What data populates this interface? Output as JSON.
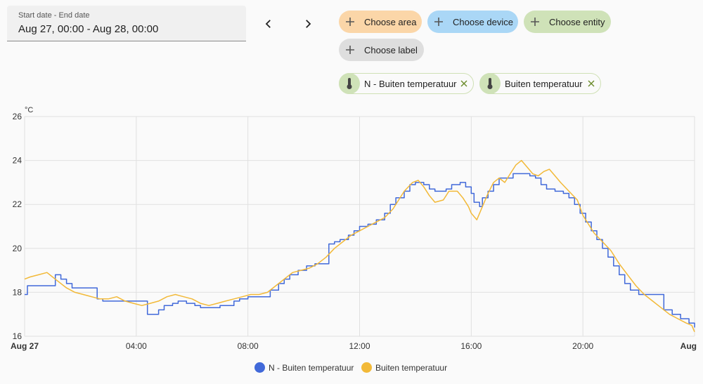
{
  "date_range": {
    "label": "Start date - End date",
    "value": "Aug 27, 00:00 - Aug 28, 00:00"
  },
  "nav": {
    "prev_icon": "chevron-left-icon",
    "next_icon": "chevron-right-icon"
  },
  "target_picker": {
    "area_label": "Choose area",
    "device_label": "Choose device",
    "entity_label": "Choose entity",
    "label_label": "Choose label",
    "colors": {
      "area": "#fbd6a8",
      "device": "#aad7f6",
      "entity": "#cfe2b8",
      "label": "#dedede"
    }
  },
  "selected_entities": [
    {
      "label": "N - Buiten temperatuur",
      "icon": "thermometer-icon"
    },
    {
      "label": "Buiten temperatuur",
      "icon": "thermometer-icon"
    }
  ],
  "chart_data": {
    "type": "line",
    "title": "",
    "ylabel": "°C",
    "xlabel": "",
    "ylim": [
      16,
      26
    ],
    "xlim": [
      0,
      24
    ],
    "y_ticks": [
      "16",
      "18",
      "20",
      "22",
      "24",
      "26"
    ],
    "x_ticks": [
      {
        "at": 0,
        "label": "Aug 27"
      },
      {
        "at": 4,
        "label": "04:00"
      },
      {
        "at": 8,
        "label": "08:00"
      },
      {
        "at": 12,
        "label": "12:00"
      },
      {
        "at": 16,
        "label": "16:00"
      },
      {
        "at": 20,
        "label": "20:00"
      },
      {
        "at": 24,
        "label": "Aug"
      }
    ],
    "grid": true,
    "legend_position": "bottom",
    "series": [
      {
        "name": "N - Buiten temperatuur",
        "color": "#4169d9",
        "step": true,
        "points": [
          [
            0,
            17.9
          ],
          [
            0.1,
            18.3
          ],
          [
            1.1,
            18.3
          ],
          [
            1.1,
            18.8
          ],
          [
            1.3,
            18.6
          ],
          [
            1.5,
            18.4
          ],
          [
            1.7,
            18.2
          ],
          [
            2.6,
            18.2
          ],
          [
            2.6,
            17.7
          ],
          [
            2.8,
            17.6
          ],
          [
            4.4,
            17.6
          ],
          [
            4.4,
            17.0
          ],
          [
            4.8,
            17.0
          ],
          [
            4.8,
            17.2
          ],
          [
            5.0,
            17.4
          ],
          [
            5.3,
            17.5
          ],
          [
            5.5,
            17.6
          ],
          [
            5.8,
            17.5
          ],
          [
            6.1,
            17.4
          ],
          [
            6.3,
            17.3
          ],
          [
            7.0,
            17.3
          ],
          [
            7.0,
            17.4
          ],
          [
            7.5,
            17.6
          ],
          [
            7.7,
            17.7
          ],
          [
            8.0,
            17.8
          ],
          [
            8.8,
            17.8
          ],
          [
            8.8,
            18.1
          ],
          [
            9.1,
            18.4
          ],
          [
            9.3,
            18.6
          ],
          [
            9.5,
            18.8
          ],
          [
            9.8,
            19.0
          ],
          [
            10.1,
            19.2
          ],
          [
            10.4,
            19.3
          ],
          [
            10.6,
            19.3
          ],
          [
            10.9,
            19.3
          ],
          [
            10.9,
            20.2
          ],
          [
            11.1,
            20.3
          ],
          [
            11.3,
            20.4
          ],
          [
            11.6,
            20.6
          ],
          [
            11.8,
            20.8
          ],
          [
            12.0,
            21.0
          ],
          [
            12.3,
            21.1
          ],
          [
            12.6,
            21.3
          ],
          [
            12.9,
            21.6
          ],
          [
            13.1,
            22.0
          ],
          [
            13.3,
            22.3
          ],
          [
            13.6,
            22.6
          ],
          [
            13.8,
            22.9
          ],
          [
            14.0,
            23.0
          ],
          [
            14.3,
            23.0
          ],
          [
            14.3,
            22.9
          ],
          [
            14.5,
            22.7
          ],
          [
            14.7,
            22.6
          ],
          [
            14.9,
            22.6
          ],
          [
            15.1,
            22.7
          ],
          [
            15.3,
            22.9
          ],
          [
            15.6,
            23.0
          ],
          [
            15.8,
            22.8
          ],
          [
            16.0,
            22.5
          ],
          [
            16.1,
            22.1
          ],
          [
            16.3,
            21.9
          ],
          [
            16.4,
            22.3
          ],
          [
            16.6,
            22.6
          ],
          [
            16.8,
            22.9
          ],
          [
            17.0,
            23.2
          ],
          [
            17.5,
            23.2
          ],
          [
            17.5,
            23.4
          ],
          [
            17.9,
            23.4
          ],
          [
            18.1,
            23.3
          ],
          [
            18.3,
            23.2
          ],
          [
            18.5,
            22.9
          ],
          [
            18.7,
            22.7
          ],
          [
            19.0,
            22.6
          ],
          [
            19.3,
            22.5
          ],
          [
            19.5,
            22.3
          ],
          [
            19.7,
            22.0
          ],
          [
            19.9,
            21.6
          ],
          [
            20.1,
            21.2
          ],
          [
            20.3,
            20.8
          ],
          [
            20.5,
            20.4
          ],
          [
            20.7,
            20.0
          ],
          [
            20.9,
            19.6
          ],
          [
            21.1,
            19.2
          ],
          [
            21.3,
            18.8
          ],
          [
            21.5,
            18.4
          ],
          [
            21.7,
            18.1
          ],
          [
            22.0,
            17.9
          ],
          [
            22.9,
            17.9
          ],
          [
            22.9,
            17.2
          ],
          [
            23.2,
            17.0
          ],
          [
            23.5,
            16.8
          ],
          [
            23.8,
            16.6
          ],
          [
            24.0,
            16.4
          ]
        ]
      },
      {
        "name": "Buiten temperatuur",
        "color": "#f2b938",
        "step": false,
        "points": [
          [
            0,
            18.6
          ],
          [
            0.2,
            18.7
          ],
          [
            0.5,
            18.8
          ],
          [
            0.8,
            18.9
          ],
          [
            1.0,
            18.7
          ],
          [
            1.2,
            18.5
          ],
          [
            1.5,
            18.2
          ],
          [
            1.8,
            18.0
          ],
          [
            2.1,
            17.9
          ],
          [
            2.4,
            17.8
          ],
          [
            2.7,
            17.7
          ],
          [
            3.0,
            17.7
          ],
          [
            3.3,
            17.8
          ],
          [
            3.6,
            17.6
          ],
          [
            3.9,
            17.5
          ],
          [
            4.2,
            17.4
          ],
          [
            4.5,
            17.5
          ],
          [
            4.8,
            17.6
          ],
          [
            5.1,
            17.8
          ],
          [
            5.4,
            17.9
          ],
          [
            5.7,
            17.8
          ],
          [
            6.0,
            17.7
          ],
          [
            6.3,
            17.5
          ],
          [
            6.6,
            17.4
          ],
          [
            6.9,
            17.5
          ],
          [
            7.2,
            17.6
          ],
          [
            7.5,
            17.7
          ],
          [
            7.8,
            17.8
          ],
          [
            8.1,
            17.9
          ],
          [
            8.4,
            17.9
          ],
          [
            8.7,
            18.0
          ],
          [
            9.0,
            18.3
          ],
          [
            9.3,
            18.6
          ],
          [
            9.6,
            18.9
          ],
          [
            9.9,
            19.0
          ],
          [
            10.2,
            19.1
          ],
          [
            10.5,
            19.3
          ],
          [
            10.8,
            19.6
          ],
          [
            11.1,
            20.0
          ],
          [
            11.4,
            20.3
          ],
          [
            11.7,
            20.6
          ],
          [
            12.0,
            20.8
          ],
          [
            12.3,
            21.0
          ],
          [
            12.6,
            21.2
          ],
          [
            12.9,
            21.4
          ],
          [
            13.2,
            21.8
          ],
          [
            13.4,
            22.2
          ],
          [
            13.6,
            22.6
          ],
          [
            13.9,
            23.0
          ],
          [
            14.1,
            23.1
          ],
          [
            14.3,
            22.8
          ],
          [
            14.5,
            22.4
          ],
          [
            14.7,
            22.1
          ],
          [
            15.0,
            22.2
          ],
          [
            15.2,
            22.6
          ],
          [
            15.5,
            22.6
          ],
          [
            15.7,
            22.3
          ],
          [
            15.9,
            21.9
          ],
          [
            16.0,
            21.6
          ],
          [
            16.2,
            21.3
          ],
          [
            16.4,
            21.9
          ],
          [
            16.6,
            22.5
          ],
          [
            16.8,
            23.0
          ],
          [
            17.0,
            23.2
          ],
          [
            17.2,
            23.0
          ],
          [
            17.4,
            23.4
          ],
          [
            17.6,
            23.8
          ],
          [
            17.8,
            24.0
          ],
          [
            18.0,
            23.7
          ],
          [
            18.2,
            23.4
          ],
          [
            18.4,
            23.3
          ],
          [
            18.6,
            23.5
          ],
          [
            18.8,
            23.6
          ],
          [
            19.0,
            23.3
          ],
          [
            19.2,
            23.0
          ],
          [
            19.5,
            22.6
          ],
          [
            19.8,
            22.2
          ],
          [
            20.0,
            21.5
          ],
          [
            20.2,
            21.1
          ],
          [
            20.4,
            20.7
          ],
          [
            20.7,
            20.3
          ],
          [
            21.0,
            19.9
          ],
          [
            21.3,
            19.3
          ],
          [
            21.6,
            18.8
          ],
          [
            21.9,
            18.3
          ],
          [
            22.2,
            17.9
          ],
          [
            22.5,
            17.6
          ],
          [
            22.8,
            17.3
          ],
          [
            23.1,
            17.0
          ],
          [
            23.4,
            16.8
          ],
          [
            23.7,
            16.6
          ],
          [
            23.9,
            16.5
          ],
          [
            24.0,
            16.2
          ]
        ]
      }
    ]
  }
}
